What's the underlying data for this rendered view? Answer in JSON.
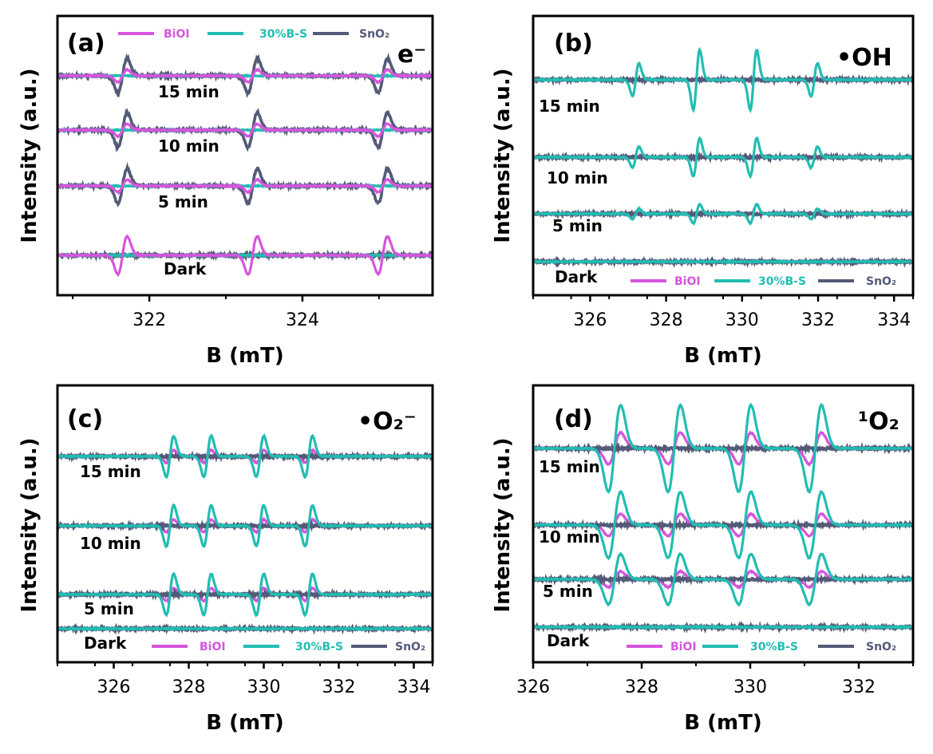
{
  "colors": {
    "BiOI": "#d655dd",
    "30%B-S": "#22bdb2",
    "SnO2": "#545a78"
  },
  "chart_data": [
    {
      "type": "line",
      "panel_label": "(a)",
      "species_label": "e⁻",
      "xlabel": "B (mT)",
      "ylabel": "Intensity (a.u.)",
      "xlim": [
        320.8,
        325.7
      ],
      "xticks": [
        "322",
        "324"
      ],
      "xtick_values": [
        322,
        324
      ],
      "legend": {
        "entries": [
          "BiOI",
          "30%B-S",
          "SnO₂"
        ],
        "placement": "top"
      },
      "time_labels": [
        "15 min",
        "10 min",
        "5 min",
        "Dark"
      ],
      "lines": [
        321.65,
        323.35,
        325.05
      ]
    },
    {
      "type": "line",
      "panel_label": "(b)",
      "species_label": "•OH",
      "xlabel": "B (mT)",
      "ylabel": "Intensity (a.u.)",
      "xlim": [
        324.5,
        334.5
      ],
      "xticks": [
        "326",
        "328",
        "330",
        "332",
        "334"
      ],
      "xtick_values": [
        326,
        328,
        330,
        332,
        334
      ],
      "legend": {
        "entries": [
          "BiOI",
          "30%B-S",
          "SnO₂"
        ],
        "placement": "bottom"
      },
      "time_labels": [
        "15 min",
        "10 min",
        "5 min",
        "Dark"
      ],
      "lines": [
        327.2,
        328.8,
        330.3,
        331.9
      ]
    },
    {
      "type": "line",
      "panel_label": "(c)",
      "species_label": "•O₂⁻",
      "xlabel": "B (mT)",
      "ylabel": "Intensity (a.u.)",
      "xlim": [
        324.5,
        334.5
      ],
      "xticks": [
        "326",
        "328",
        "330",
        "332",
        "334"
      ],
      "xtick_values": [
        326,
        328,
        330,
        332,
        334
      ],
      "legend": {
        "entries": [
          "BiOI",
          "30%B-S",
          "SnO₂"
        ],
        "placement": "bottom"
      },
      "time_labels": [
        "15 min",
        "10 min",
        "5 min",
        "Dark"
      ],
      "lines": [
        327.5,
        328.5,
        329.9,
        331.2
      ]
    },
    {
      "type": "line",
      "panel_label": "(d)",
      "species_label": "¹O₂",
      "xlabel": "B (mT)",
      "ylabel": "Intensity (a.u.)",
      "xlim": [
        326,
        333
      ],
      "xticks": [
        "326",
        "328",
        "330",
        "332"
      ],
      "xtick_values": [
        326,
        328,
        330,
        332
      ],
      "legend": {
        "entries": [
          "BiOI",
          "30%B-S",
          "SnO₂"
        ],
        "placement": "bottom"
      },
      "time_labels": [
        "15 min",
        "10 min",
        "5 min",
        "Dark"
      ],
      "lines": [
        327.5,
        328.6,
        329.9,
        331.2
      ]
    }
  ]
}
